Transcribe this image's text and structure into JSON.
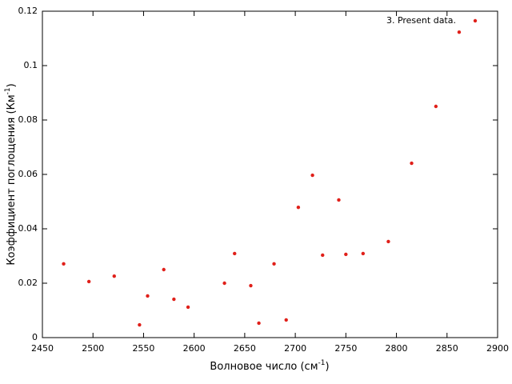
{
  "chart_data": {
    "type": "scatter",
    "x_label": {
      "text": "Волновое число (см",
      "superscript": "-1",
      "suffix": ")"
    },
    "y_label": {
      "text": "Коэффициент поглощения (Км",
      "superscript": "-1",
      "suffix": ")"
    },
    "xlim": [
      2450,
      2900
    ],
    "xticks": [
      2450,
      2500,
      2550,
      2600,
      2650,
      2700,
      2750,
      2800,
      2850,
      2900
    ],
    "ylim": [
      0,
      0.12
    ],
    "yticks": [
      0,
      0.02,
      0.04,
      0.06,
      0.08,
      0.1,
      0.12
    ],
    "legend": "top-right",
    "series": [
      {
        "name": "3. Present data.",
        "color": "#e0201a",
        "x": [
          2471,
          2496,
          2521,
          2546,
          2554,
          2570,
          2580,
          2594,
          2630,
          2640,
          2656,
          2664,
          2679,
          2691,
          2703,
          2717,
          2727,
          2743,
          2750,
          2767,
          2792,
          2815,
          2839,
          2862
        ],
        "values": [
          0.0271,
          0.0206,
          0.0226,
          0.0047,
          0.0153,
          0.025,
          0.0141,
          0.0112,
          0.02,
          0.0309,
          0.0191,
          0.0053,
          0.0271,
          0.0065,
          0.0479,
          0.0597,
          0.0303,
          0.0506,
          0.0306,
          0.0309,
          0.0353,
          0.0641,
          0.085,
          0.1123
        ]
      }
    ]
  }
}
